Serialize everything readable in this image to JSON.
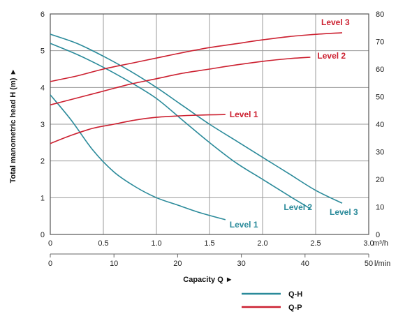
{
  "chart_data": {
    "type": "line",
    "xlabel": "Capacity Q ►",
    "ylabel_left": "Total manometric head H (m) ►",
    "x_unit": "m³/h",
    "x2_unit": "l/min",
    "x_ticks": [
      "0",
      "0.5",
      "1.0",
      "1.5",
      "2.0",
      "2.5",
      "3.0"
    ],
    "x_ticks_values": [
      0,
      0.5,
      1.0,
      1.5,
      2.0,
      2.5,
      3.0
    ],
    "x2_ticks": [
      "0",
      "10",
      "20",
      "30",
      "40",
      "50"
    ],
    "x2_ticks_values": [
      0,
      10,
      20,
      30,
      40,
      50
    ],
    "y_ticks": [
      "0",
      "1",
      "2",
      "3",
      "4",
      "5",
      "6"
    ],
    "y_ticks_values": [
      0,
      1,
      2,
      3,
      4,
      5,
      6
    ],
    "y2_ticks": [
      "0",
      "10",
      "20",
      "30",
      "40",
      "50",
      "60",
      "70",
      "80"
    ],
    "y2_ticks_values": [
      0,
      10,
      20,
      30,
      40,
      50,
      60,
      70,
      80
    ],
    "xlim": [
      0,
      3.0
    ],
    "x2lim": [
      0,
      50
    ],
    "ylim": [
      0,
      6
    ],
    "y2lim": [
      0,
      80
    ],
    "grid": true,
    "colors": {
      "qh": "#2a8a9a",
      "qp": "#cc2030"
    },
    "legend": [
      {
        "label": "Q-H",
        "color": "#2a8a9a"
      },
      {
        "label": "Q-P",
        "color": "#cc2030"
      }
    ],
    "qh_series": [
      {
        "name": "Level 1",
        "points": [
          [
            0,
            3.8
          ],
          [
            0.2,
            3.1
          ],
          [
            0.4,
            2.3
          ],
          [
            0.6,
            1.7
          ],
          [
            0.8,
            1.3
          ],
          [
            1.0,
            1.0
          ],
          [
            1.2,
            0.8
          ],
          [
            1.4,
            0.6
          ],
          [
            1.65,
            0.4
          ]
        ]
      },
      {
        "name": "Level 2",
        "points": [
          [
            0,
            5.2
          ],
          [
            0.25,
            4.9
          ],
          [
            0.5,
            4.55
          ],
          [
            0.75,
            4.15
          ],
          [
            1.0,
            3.7
          ],
          [
            1.25,
            3.1
          ],
          [
            1.5,
            2.5
          ],
          [
            1.75,
            1.95
          ],
          [
            2.0,
            1.5
          ],
          [
            2.25,
            1.05
          ],
          [
            2.45,
            0.7
          ]
        ]
      },
      {
        "name": "Level 3",
        "points": [
          [
            0,
            5.45
          ],
          [
            0.25,
            5.2
          ],
          [
            0.5,
            4.85
          ],
          [
            0.75,
            4.45
          ],
          [
            1.0,
            4.0
          ],
          [
            1.25,
            3.5
          ],
          [
            1.5,
            3.0
          ],
          [
            1.75,
            2.55
          ],
          [
            2.0,
            2.1
          ],
          [
            2.25,
            1.65
          ],
          [
            2.5,
            1.2
          ],
          [
            2.75,
            0.85
          ]
        ]
      }
    ],
    "qp_series": [
      {
        "name": "Level 1",
        "points": [
          [
            0,
            33
          ],
          [
            0.2,
            36
          ],
          [
            0.4,
            38.5
          ],
          [
            0.6,
            40
          ],
          [
            0.8,
            41.5
          ],
          [
            1.0,
            42.5
          ],
          [
            1.2,
            43
          ],
          [
            1.4,
            43.3
          ],
          [
            1.65,
            43.5
          ]
        ]
      },
      {
        "name": "Level 2",
        "points": [
          [
            0,
            47
          ],
          [
            0.25,
            49.5
          ],
          [
            0.5,
            52
          ],
          [
            0.75,
            54.5
          ],
          [
            1.0,
            56.5
          ],
          [
            1.25,
            58.5
          ],
          [
            1.5,
            60
          ],
          [
            1.75,
            61.5
          ],
          [
            2.0,
            62.8
          ],
          [
            2.25,
            63.8
          ],
          [
            2.45,
            64.3
          ]
        ]
      },
      {
        "name": "Level 3",
        "points": [
          [
            0,
            55.5
          ],
          [
            0.25,
            57.5
          ],
          [
            0.5,
            60
          ],
          [
            0.75,
            62
          ],
          [
            1.0,
            64
          ],
          [
            1.25,
            66
          ],
          [
            1.5,
            67.8
          ],
          [
            1.75,
            69.2
          ],
          [
            2.0,
            70.6
          ],
          [
            2.25,
            71.8
          ],
          [
            2.5,
            72.6
          ],
          [
            2.75,
            73.2
          ]
        ]
      }
    ]
  }
}
